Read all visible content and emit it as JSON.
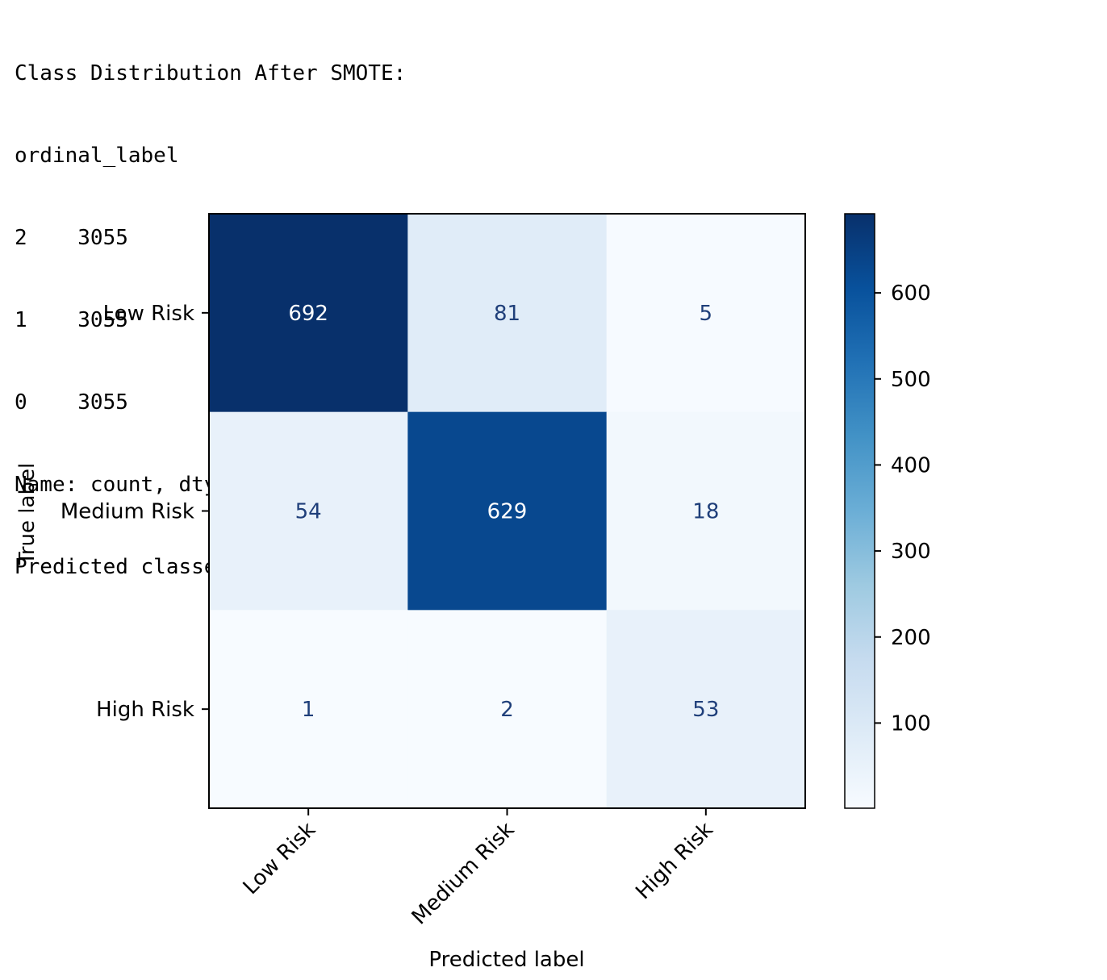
{
  "console_lines": [
    "Class Distribution After SMOTE:",
    "ordinal_label",
    "2    3055",
    "1    3055",
    "0    3055",
    "Name: count, dtype: int64",
    "Predicted classes: [0 1 2]"
  ],
  "chart_data": {
    "type": "heatmap",
    "title": "",
    "xlabel": "Predicted label",
    "ylabel": "True label",
    "x_categories": [
      "Low Risk",
      "Medium Risk",
      "High Risk"
    ],
    "y_categories": [
      "Low Risk",
      "Medium Risk",
      "High Risk"
    ],
    "matrix": [
      [
        692,
        81,
        5
      ],
      [
        54,
        629,
        18
      ],
      [
        1,
        2,
        53
      ]
    ],
    "colormap": "Blues",
    "colorbar": {
      "min": 1,
      "max": 692,
      "ticks": [
        100,
        200,
        300,
        400,
        500,
        600
      ]
    },
    "colors": {
      "dark_text": "#ffffff",
      "light_text": "#1f3f7a"
    }
  }
}
